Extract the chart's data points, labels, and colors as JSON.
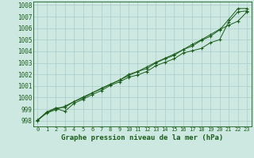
{
  "background_color": "#cce8e0",
  "grid_color": "#aacccc",
  "line_color": "#1a5c1a",
  "xlabel": "Graphe pression niveau de la mer (hPa)",
  "ylim": [
    997.5,
    1008.3
  ],
  "xlim": [
    -0.5,
    23.5
  ],
  "yticks": [
    998,
    999,
    1000,
    1001,
    1002,
    1003,
    1004,
    1005,
    1006,
    1007,
    1008
  ],
  "xticks": [
    0,
    1,
    2,
    3,
    4,
    5,
    6,
    7,
    8,
    9,
    10,
    11,
    12,
    13,
    14,
    15,
    16,
    17,
    18,
    19,
    20,
    21,
    22,
    23
  ],
  "series1": [
    998.0,
    998.7,
    999.05,
    998.8,
    999.5,
    999.85,
    1000.25,
    1000.6,
    1001.05,
    1001.35,
    1001.75,
    1001.95,
    1002.25,
    1002.75,
    1003.05,
    1003.35,
    1003.85,
    1004.05,
    1004.25,
    1004.75,
    1005.0,
    1006.55,
    1007.4,
    1007.5
  ],
  "series2": [
    998.05,
    998.75,
    999.1,
    999.15,
    999.65,
    999.95,
    1000.4,
    1000.75,
    1001.15,
    1001.5,
    1002.0,
    1002.25,
    1002.5,
    1003.0,
    1003.35,
    1003.65,
    1004.15,
    1004.45,
    1004.95,
    1005.3,
    1005.85,
    1006.75,
    1007.7,
    1007.7
  ],
  "series3": [
    998.05,
    998.65,
    998.95,
    999.25,
    999.65,
    1000.05,
    1000.4,
    1000.8,
    1001.15,
    1001.5,
    1001.9,
    1002.25,
    1002.65,
    1003.05,
    1003.4,
    1003.75,
    1004.15,
    1004.6,
    1005.0,
    1005.45,
    1005.9,
    1006.25,
    1006.6,
    1007.4
  ],
  "ylabel_fontsize": 5.5,
  "xlabel_fontsize": 6.5,
  "tick_fontsize": 5.0
}
